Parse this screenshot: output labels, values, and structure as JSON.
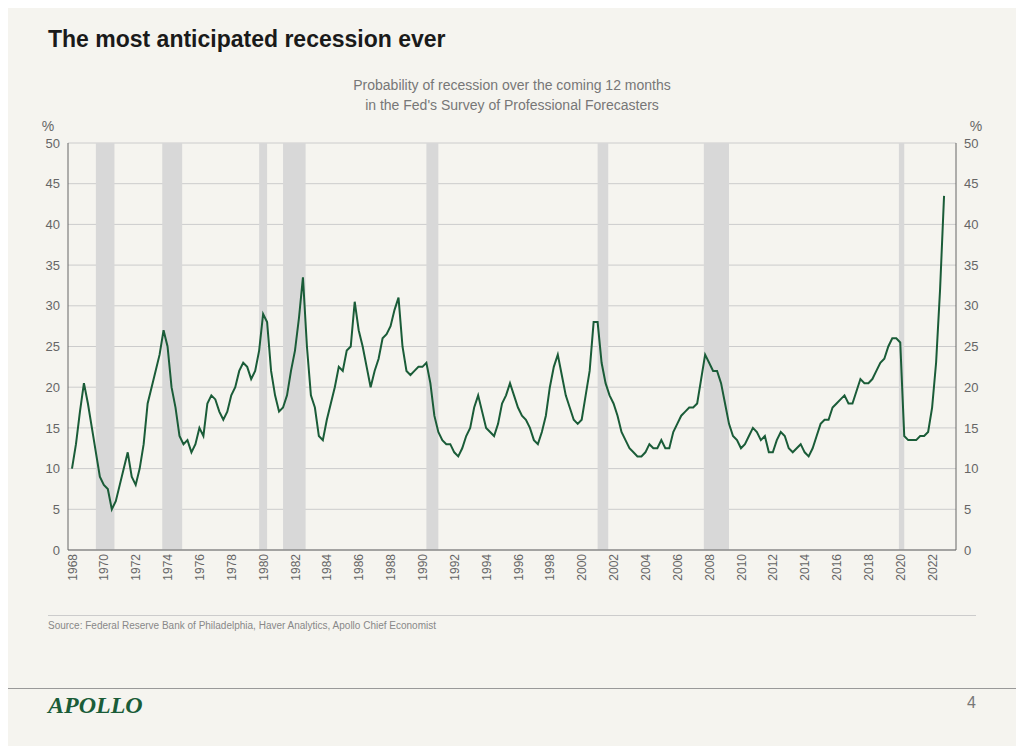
{
  "chart_data": {
    "type": "line",
    "title": "The most anticipated recession ever",
    "subtitle": [
      "Probability of recession over the coming 12 months",
      "in the Fed's Survey of Professional Forecasters"
    ],
    "source": "Source: Federal Reserve Bank of Philadelphia, Haver Analytics, Apollo Chief Economist",
    "branding": "APOLLO",
    "page_number": "4",
    "ylabel": "%",
    "y2label": "%",
    "color": "#1a5c38",
    "background_color": "#f5f4ef",
    "recession_color": "#d8d8d8",
    "recession_bands": [
      [
        1969.75,
        1970.917
      ],
      [
        1973.917,
        1975.167
      ],
      [
        1980.0,
        1980.5
      ],
      [
        1981.5,
        1982.917
      ],
      [
        1990.5,
        1991.25
      ],
      [
        2001.25,
        2001.917
      ],
      [
        2007.917,
        2009.5
      ],
      [
        2020.167,
        2020.5
      ]
    ],
    "grid": "y",
    "xlim": [
      1968.0,
      2023.75
    ],
    "xticks": [
      1968,
      1970,
      1972,
      1974,
      1976,
      1978,
      1980,
      1982,
      1984,
      1986,
      1988,
      1990,
      1992,
      1994,
      1996,
      1998,
      2000,
      2002,
      2004,
      2006,
      2008,
      2010,
      2012,
      2014,
      2016,
      2018,
      2020,
      2022
    ],
    "ylim": [
      0,
      50
    ],
    "yticks": [
      0,
      5,
      10,
      15,
      20,
      25,
      30,
      35,
      40,
      45,
      50
    ],
    "y2lim": [
      0,
      50
    ],
    "y2ticks": [
      0,
      5,
      10,
      15,
      20,
      25,
      30,
      35,
      40,
      45,
      50
    ],
    "x": [
      1968.25,
      1968.5,
      1968.75,
      1969.0,
      1969.25,
      1969.5,
      1969.75,
      1970.0,
      1970.25,
      1970.5,
      1970.75,
      1971.0,
      1971.25,
      1971.5,
      1971.75,
      1972.0,
      1972.25,
      1972.5,
      1972.75,
      1973.0,
      1973.25,
      1973.5,
      1973.75,
      1974.0,
      1974.25,
      1974.5,
      1974.75,
      1975.0,
      1975.25,
      1975.5,
      1975.75,
      1976.0,
      1976.25,
      1976.5,
      1976.75,
      1977.0,
      1977.25,
      1977.5,
      1977.75,
      1978.0,
      1978.25,
      1978.5,
      1978.75,
      1979.0,
      1979.25,
      1979.5,
      1979.75,
      1980.0,
      1980.25,
      1980.5,
      1980.75,
      1981.0,
      1981.25,
      1981.5,
      1981.75,
      1982.0,
      1982.25,
      1982.5,
      1982.75,
      1983.0,
      1983.25,
      1983.5,
      1983.75,
      1984.0,
      1984.25,
      1984.5,
      1984.75,
      1985.0,
      1985.25,
      1985.5,
      1985.75,
      1986.0,
      1986.25,
      1986.5,
      1986.75,
      1987.0,
      1987.25,
      1987.5,
      1987.75,
      1988.0,
      1988.25,
      1988.5,
      1988.75,
      1989.0,
      1989.25,
      1989.5,
      1989.75,
      1990.0,
      1990.25,
      1990.5,
      1990.75,
      1991.0,
      1991.25,
      1991.5,
      1991.75,
      1992.0,
      1992.25,
      1992.5,
      1992.75,
      1993.0,
      1993.25,
      1993.5,
      1993.75,
      1994.0,
      1994.25,
      1994.5,
      1994.75,
      1995.0,
      1995.25,
      1995.5,
      1995.75,
      1996.0,
      1996.25,
      1996.5,
      1996.75,
      1997.0,
      1997.25,
      1997.5,
      1997.75,
      1998.0,
      1998.25,
      1998.5,
      1998.75,
      1999.0,
      1999.25,
      1999.5,
      1999.75,
      2000.0,
      2000.25,
      2000.5,
      2000.75,
      2001.0,
      2001.25,
      2001.5,
      2001.75,
      2002.0,
      2002.25,
      2002.5,
      2002.75,
      2003.0,
      2003.25,
      2003.5,
      2003.75,
      2004.0,
      2004.25,
      2004.5,
      2004.75,
      2005.0,
      2005.25,
      2005.5,
      2005.75,
      2006.0,
      2006.25,
      2006.5,
      2006.75,
      2007.0,
      2007.25,
      2007.5,
      2007.75,
      2008.0,
      2008.25,
      2008.5,
      2008.75,
      2009.0,
      2009.25,
      2009.5,
      2009.75,
      2010.0,
      2010.25,
      2010.5,
      2010.75,
      2011.0,
      2011.25,
      2011.5,
      2011.75,
      2012.0,
      2012.25,
      2012.5,
      2012.75,
      2013.0,
      2013.25,
      2013.5,
      2013.75,
      2014.0,
      2014.25,
      2014.5,
      2014.75,
      2015.0,
      2015.25,
      2015.5,
      2015.75,
      2016.0,
      2016.25,
      2016.5,
      2016.75,
      2017.0,
      2017.25,
      2017.5,
      2017.75,
      2018.0,
      2018.25,
      2018.5,
      2018.75,
      2019.0,
      2019.25,
      2019.5,
      2019.75,
      2020.0,
      2020.25,
      2020.5,
      2020.75,
      2021.0,
      2021.25,
      2021.5,
      2021.75,
      2022.0,
      2022.25,
      2022.5,
      2022.75,
      2023.0
    ],
    "values": [
      10.0,
      13.0,
      17.0,
      20.5,
      18.0,
      15.0,
      12.0,
      9.0,
      8.0,
      7.5,
      5.0,
      6.0,
      8.0,
      10.0,
      12.0,
      9.0,
      8.0,
      10.0,
      13.0,
      18.0,
      20.0,
      22.0,
      24.0,
      27.0,
      25.0,
      20.0,
      17.5,
      14.0,
      13.0,
      13.5,
      12.0,
      13.0,
      15.0,
      14.0,
      18.0,
      19.0,
      18.5,
      17.0,
      16.0,
      17.0,
      19.0,
      20.0,
      22.0,
      23.0,
      22.5,
      21.0,
      22.0,
      24.5,
      29.0,
      28.0,
      22.0,
      19.0,
      17.0,
      17.5,
      19.0,
      22.0,
      24.5,
      28.5,
      33.5,
      25.0,
      19.0,
      17.5,
      14.0,
      13.5,
      16.0,
      18.0,
      20.0,
      22.5,
      22.0,
      24.5,
      25.0,
      30.5,
      27.0,
      25.0,
      22.5,
      20.0,
      22.0,
      23.5,
      26.0,
      26.5,
      27.5,
      29.5,
      31.0,
      25.0,
      22.0,
      21.5,
      22.0,
      22.5,
      22.5,
      23.0,
      20.5,
      16.5,
      14.5,
      13.5,
      13.0,
      13.0,
      12.0,
      11.5,
      12.5,
      14.0,
      15.0,
      17.5,
      19.0,
      17.0,
      15.0,
      14.5,
      14.0,
      15.5,
      18.0,
      19.0,
      20.5,
      19.0,
      17.5,
      16.5,
      16.0,
      15.0,
      13.5,
      13.0,
      14.5,
      16.5,
      20.0,
      22.5,
      24.0,
      21.5,
      19.0,
      17.5,
      16.0,
      15.5,
      16.0,
      19.0,
      22.0,
      28.0,
      28.0,
      23.0,
      20.5,
      19.0,
      18.0,
      16.5,
      14.5,
      13.5,
      12.5,
      12.0,
      11.5,
      11.5,
      12.0,
      13.0,
      12.5,
      12.5,
      13.5,
      12.5,
      12.5,
      14.5,
      15.5,
      16.5,
      17.0,
      17.5,
      17.5,
      18.0,
      21.0,
      24.0,
      23.0,
      22.0,
      22.0,
      20.5,
      18.0,
      15.5,
      14.0,
      13.5,
      12.5,
      13.0,
      14.0,
      15.0,
      14.5,
      13.5,
      14.0,
      12.0,
      12.0,
      13.5,
      14.5,
      14.0,
      12.5,
      12.0,
      12.5,
      13.0,
      12.0,
      11.5,
      12.5,
      14.0,
      15.5,
      16.0,
      16.0,
      17.5,
      18.0,
      18.5,
      19.0,
      18.0,
      18.0,
      19.5,
      21.0,
      20.5,
      20.5,
      21.0,
      22.0,
      23.0,
      23.5,
      25.0,
      26.0,
      26.0,
      25.5,
      14.0,
      13.5,
      13.5,
      13.5,
      14.0,
      14.0,
      14.5,
      17.5,
      23.0,
      32.0,
      43.5
    ]
  }
}
